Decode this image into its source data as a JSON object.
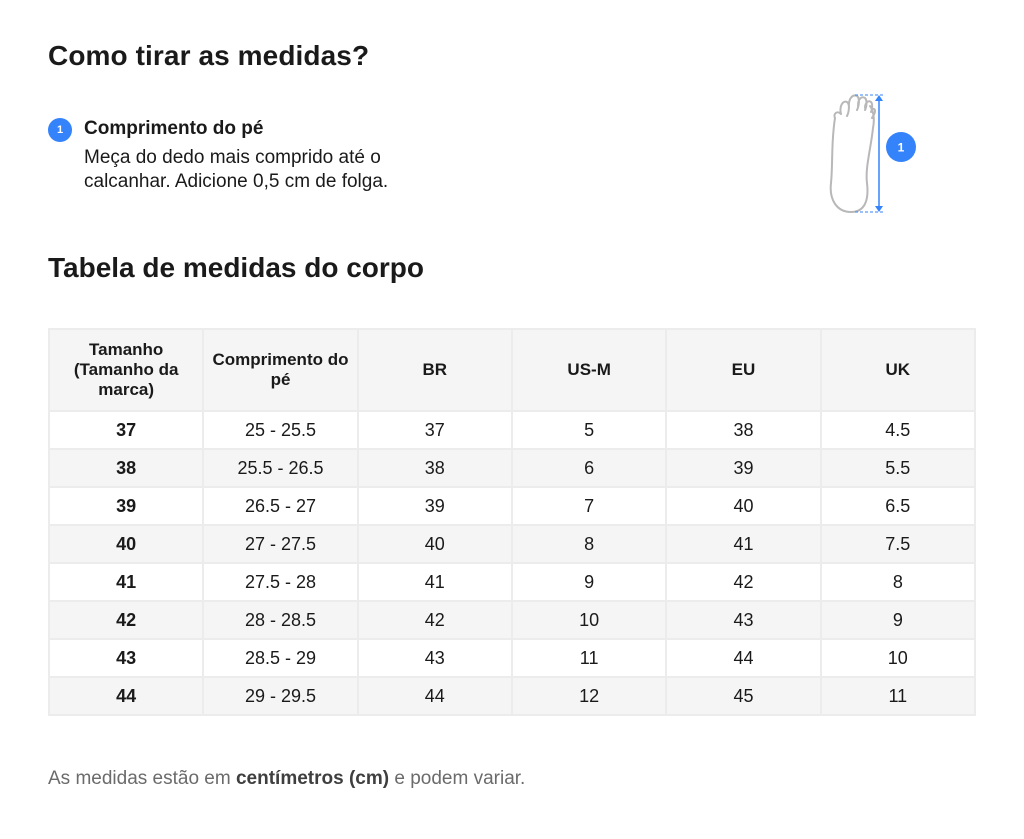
{
  "measure_heading": "Como tirar as medidas?",
  "step": {
    "number": "1",
    "title": "Comprimento do pé",
    "description": "Meça do dedo mais comprido até o calcanhar. Adicione 0,5 cm de folga."
  },
  "illustration": {
    "icon": "foot-length-icon",
    "marker_number": "1",
    "accent_color": "#3483fa"
  },
  "table_heading": "Tabela de medidas do corpo",
  "table": {
    "headers": [
      "Tamanho (Tamanho da marca)",
      "Comprimento do pé",
      "BR",
      "US-M",
      "EU",
      "UK"
    ],
    "rows": [
      [
        "37",
        "25 - 25.5",
        "37",
        "5",
        "38",
        "4.5"
      ],
      [
        "38",
        "25.5 - 26.5",
        "38",
        "6",
        "39",
        "5.5"
      ],
      [
        "39",
        "26.5 - 27",
        "39",
        "7",
        "40",
        "6.5"
      ],
      [
        "40",
        "27 - 27.5",
        "40",
        "8",
        "41",
        "7.5"
      ],
      [
        "41",
        "27.5 - 28",
        "41",
        "9",
        "42",
        "8"
      ],
      [
        "42",
        "28 - 28.5",
        "42",
        "10",
        "43",
        "9"
      ],
      [
        "43",
        "28.5 - 29",
        "43",
        "11",
        "44",
        "10"
      ],
      [
        "44",
        "29 - 29.5",
        "44",
        "12",
        "45",
        "11"
      ]
    ]
  },
  "footer": {
    "prefix": "As medidas estão em ",
    "bold": "centímetros (cm)",
    "suffix": " e podem variar."
  }
}
